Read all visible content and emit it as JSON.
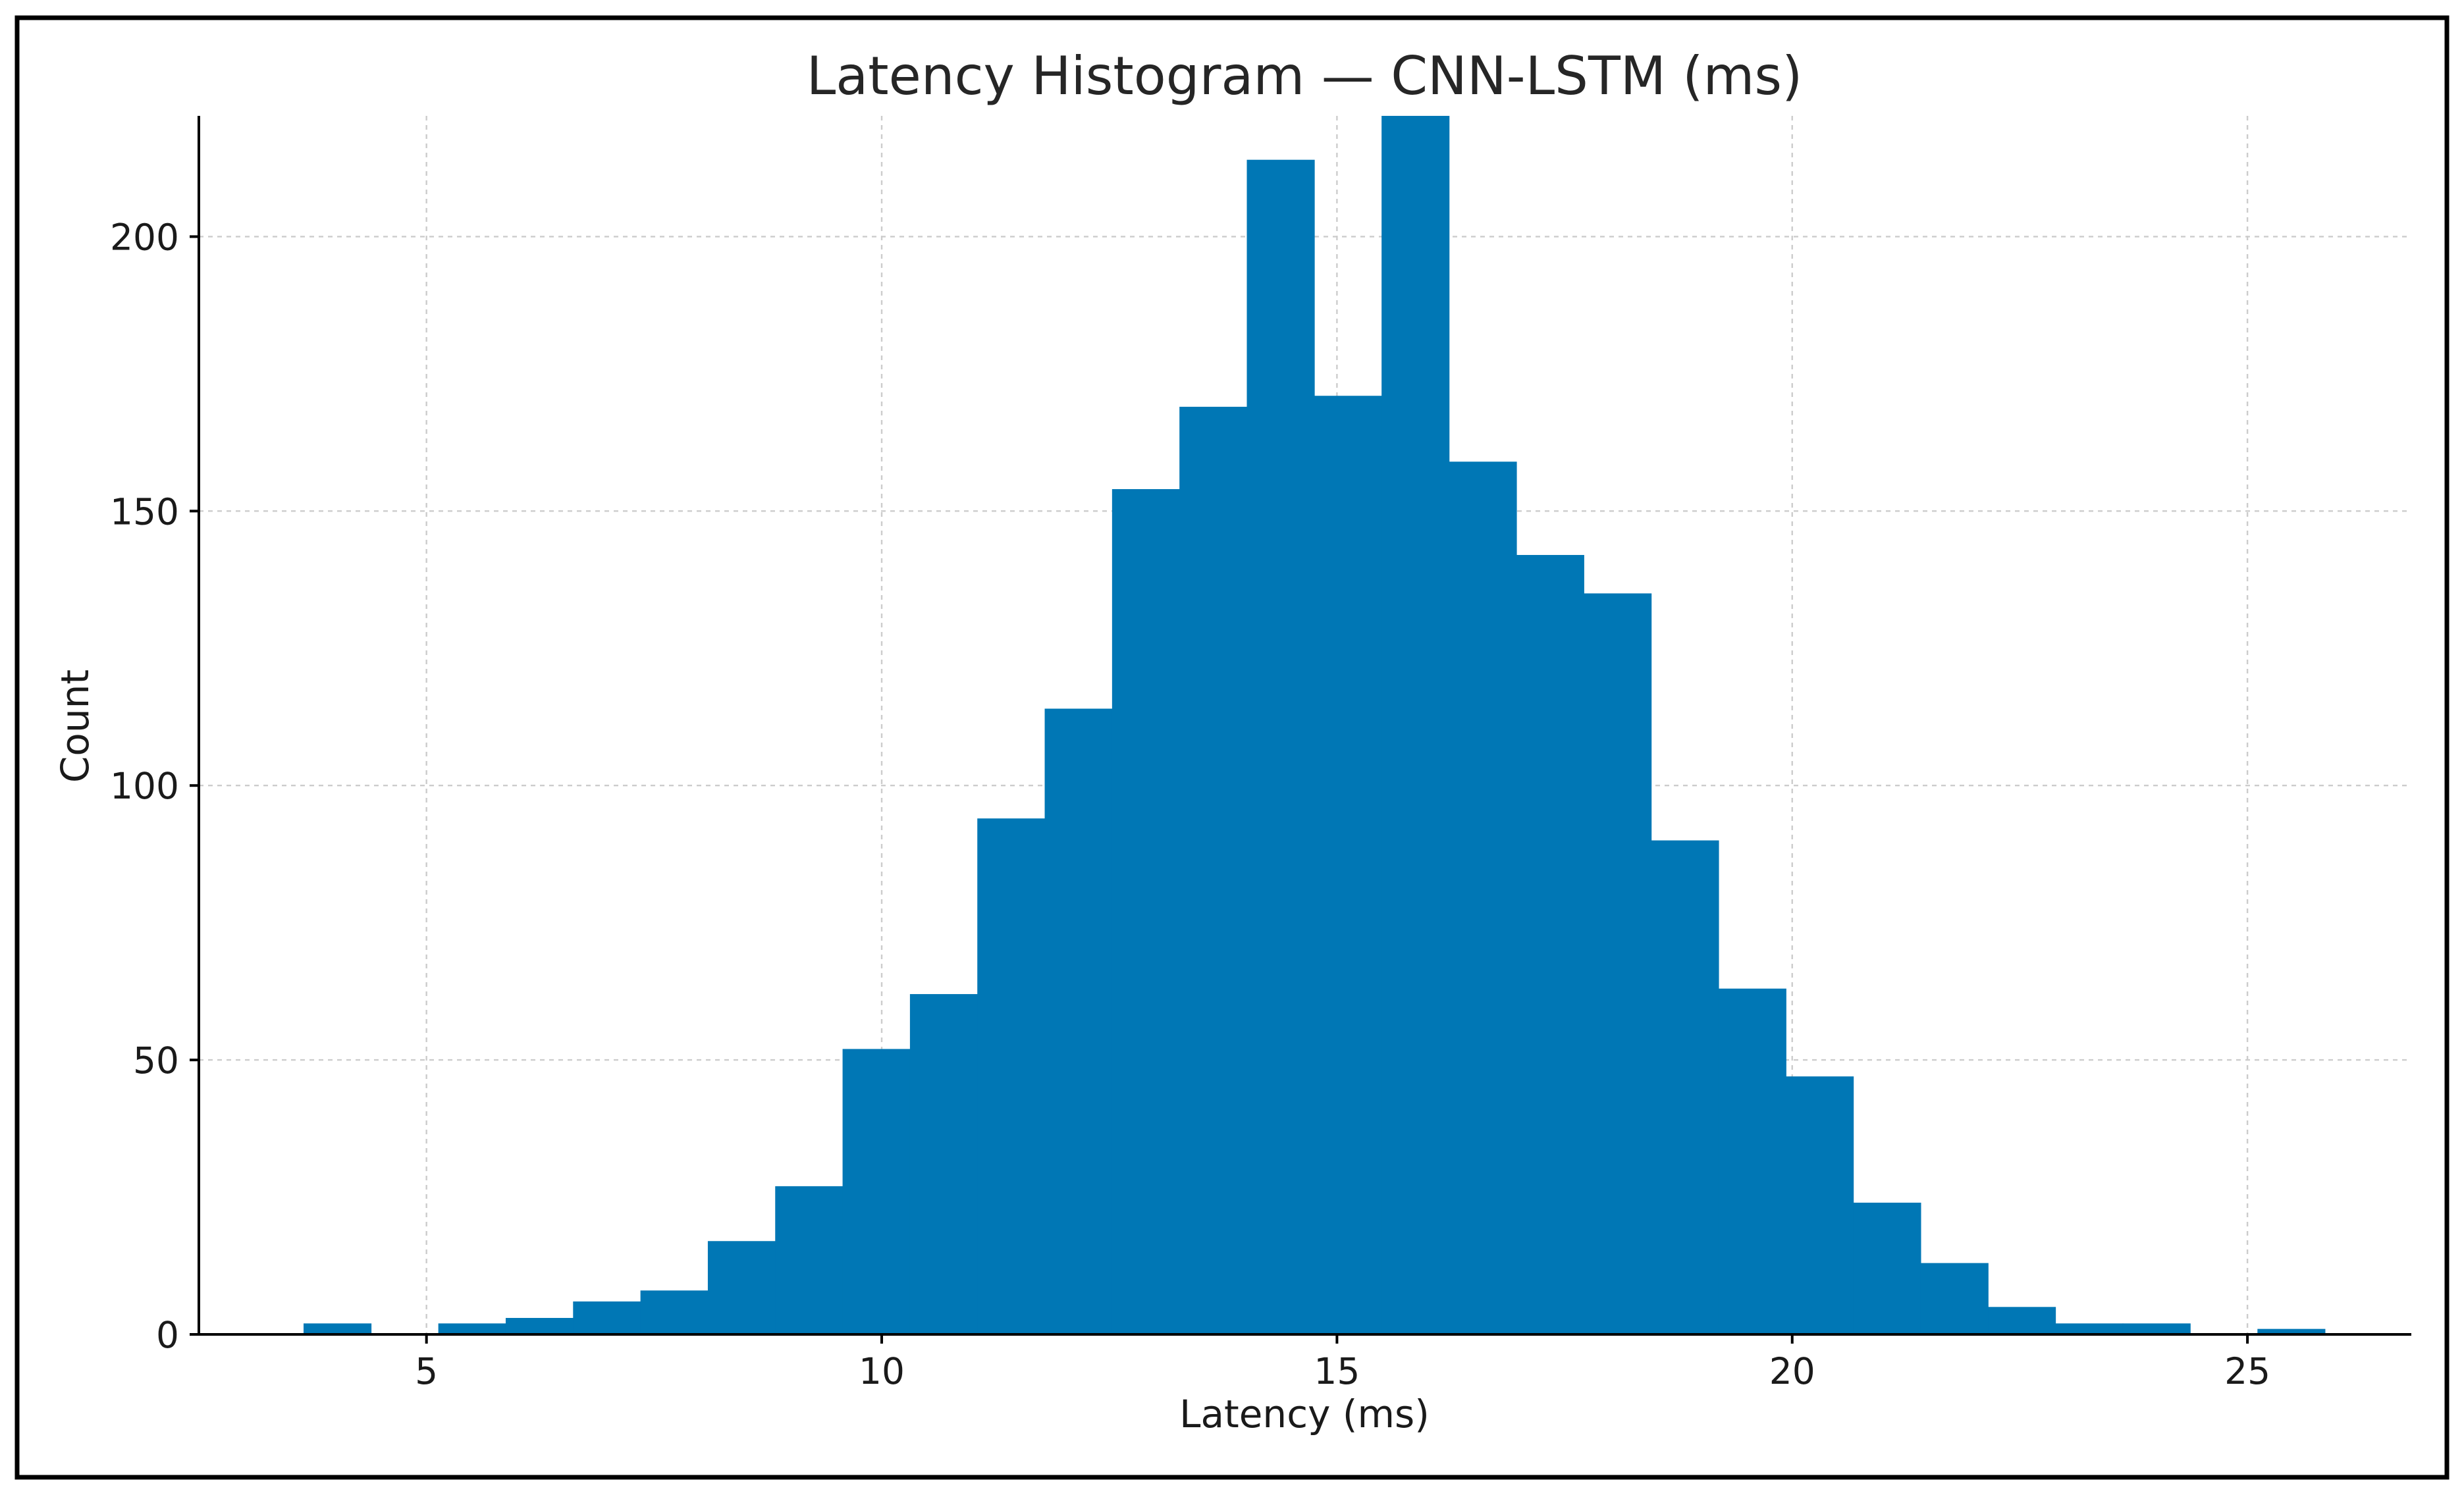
{
  "colors": {
    "bar": "#0077b5",
    "grid": "#cccccc",
    "axis": "#000000",
    "background": "#ffffff"
  },
  "chart_data": {
    "type": "bar",
    "title": "Latency Histogram — CNN-LSTM (ms)",
    "xlabel": "Latency (ms)",
    "ylabel": "Count",
    "xlim": [
      2.5,
      26.8
    ],
    "ylim": [
      0,
      222
    ],
    "xticks": [
      5,
      10,
      15,
      20,
      25
    ],
    "yticks": [
      0,
      50,
      100,
      150,
      200
    ],
    "grid": true,
    "legend": "none",
    "bin_edges": [
      3.65,
      4.39,
      5.13,
      5.87,
      6.61,
      7.35,
      8.09,
      8.83,
      9.57,
      10.31,
      11.05,
      11.79,
      12.53,
      13.27,
      14.01,
      14.75,
      15.49,
      16.23,
      16.97,
      17.71,
      18.45,
      19.19,
      19.93,
      20.67,
      21.41,
      22.15,
      22.89,
      23.63,
      24.37,
      25.11,
      25.85
    ],
    "values": [
      2,
      0,
      2,
      3,
      6,
      8,
      17,
      27,
      52,
      62,
      94,
      114,
      154,
      169,
      214,
      171,
      222,
      159,
      142,
      135,
      90,
      63,
      47,
      24,
      13,
      5,
      2,
      2,
      0,
      1
    ]
  }
}
